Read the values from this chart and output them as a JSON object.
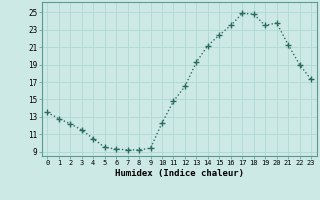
{
  "x": [
    0,
    1,
    2,
    3,
    4,
    5,
    6,
    7,
    8,
    9,
    10,
    11,
    12,
    13,
    14,
    15,
    16,
    17,
    18,
    19,
    20,
    21,
    22,
    23
  ],
  "y": [
    13.5,
    12.8,
    12.2,
    11.5,
    10.5,
    9.5,
    9.3,
    9.2,
    9.2,
    9.4,
    12.3,
    14.8,
    16.5,
    19.3,
    21.2,
    22.4,
    23.5,
    24.9,
    24.8,
    23.5,
    23.8,
    21.3,
    19.0,
    17.3
  ],
  "bg_color": "#cce9e5",
  "grid_color": "#b0d8d4",
  "line_color": "#2a6b60",
  "marker_color": "#2a6b60",
  "xlabel": "Humidex (Indice chaleur)",
  "yticks": [
    9,
    11,
    13,
    15,
    17,
    19,
    21,
    23,
    25
  ],
  "xticks": [
    0,
    1,
    2,
    3,
    4,
    5,
    6,
    7,
    8,
    9,
    10,
    11,
    12,
    13,
    14,
    15,
    16,
    17,
    18,
    19,
    20,
    21,
    22,
    23
  ],
  "xlim": [
    -0.5,
    23.5
  ],
  "ylim": [
    8.5,
    26.2
  ]
}
